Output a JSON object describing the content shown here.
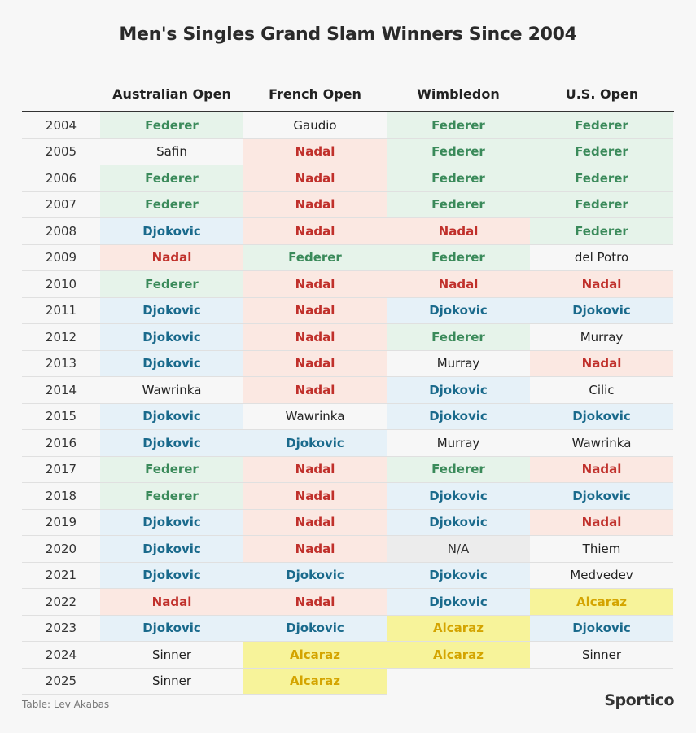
{
  "chart_data": {
    "type": "table",
    "title": "Men's Singles Grand Slam Winners Since 2004",
    "columns": [
      "Australian Open",
      "French Open",
      "Wimbledon",
      "U.S. Open"
    ],
    "rows": [
      {
        "year": "2004",
        "winners": [
          "Federer",
          "Gaudio",
          "Federer",
          "Federer"
        ]
      },
      {
        "year": "2005",
        "winners": [
          "Safin",
          "Nadal",
          "Federer",
          "Federer"
        ]
      },
      {
        "year": "2006",
        "winners": [
          "Federer",
          "Nadal",
          "Federer",
          "Federer"
        ]
      },
      {
        "year": "2007",
        "winners": [
          "Federer",
          "Nadal",
          "Federer",
          "Federer"
        ]
      },
      {
        "year": "2008",
        "winners": [
          "Djokovic",
          "Nadal",
          "Nadal",
          "Federer"
        ]
      },
      {
        "year": "2009",
        "winners": [
          "Nadal",
          "Federer",
          "Federer",
          "del Potro"
        ]
      },
      {
        "year": "2010",
        "winners": [
          "Federer",
          "Nadal",
          "Nadal",
          "Nadal"
        ]
      },
      {
        "year": "2011",
        "winners": [
          "Djokovic",
          "Nadal",
          "Djokovic",
          "Djokovic"
        ]
      },
      {
        "year": "2012",
        "winners": [
          "Djokovic",
          "Nadal",
          "Federer",
          "Murray"
        ]
      },
      {
        "year": "2013",
        "winners": [
          "Djokovic",
          "Nadal",
          "Murray",
          "Nadal"
        ]
      },
      {
        "year": "2014",
        "winners": [
          "Wawrinka",
          "Nadal",
          "Djokovic",
          "Cilic"
        ]
      },
      {
        "year": "2015",
        "winners": [
          "Djokovic",
          "Wawrinka",
          "Djokovic",
          "Djokovic"
        ]
      },
      {
        "year": "2016",
        "winners": [
          "Djokovic",
          "Djokovic",
          "Murray",
          "Wawrinka"
        ]
      },
      {
        "year": "2017",
        "winners": [
          "Federer",
          "Nadal",
          "Federer",
          "Nadal"
        ]
      },
      {
        "year": "2018",
        "winners": [
          "Federer",
          "Nadal",
          "Djokovic",
          "Djokovic"
        ]
      },
      {
        "year": "2019",
        "winners": [
          "Djokovic",
          "Nadal",
          "Djokovic",
          "Nadal"
        ]
      },
      {
        "year": "2020",
        "winners": [
          "Djokovic",
          "Nadal",
          "N/A",
          "Thiem"
        ]
      },
      {
        "year": "2021",
        "winners": [
          "Djokovic",
          "Djokovic",
          "Djokovic",
          "Medvedev"
        ]
      },
      {
        "year": "2022",
        "winners": [
          "Nadal",
          "Nadal",
          "Djokovic",
          "Alcaraz"
        ]
      },
      {
        "year": "2023",
        "winners": [
          "Djokovic",
          "Djokovic",
          "Alcaraz",
          "Djokovic"
        ]
      },
      {
        "year": "2024",
        "winners": [
          "Sinner",
          "Alcaraz",
          "Alcaraz",
          "Sinner"
        ]
      },
      {
        "year": "2025",
        "winners": [
          "Sinner",
          "Alcaraz",
          "",
          ""
        ]
      }
    ]
  },
  "player_styles": {
    "Federer": {
      "bg": "#e6f3ea",
      "color": "#3a8a5a",
      "bold": true
    },
    "Nadal": {
      "bg": "#fbe8e2",
      "color": "#c0302b",
      "bold": true
    },
    "Djokovic": {
      "bg": "#e6f1f8",
      "color": "#1a6a8c",
      "bold": true
    },
    "Alcaraz": {
      "bg": "#f7f39a",
      "color": "#d4a400",
      "bold": true
    },
    "N/A": {
      "bg": "#ececec",
      "color": "#333333",
      "bold": false
    },
    "default": {
      "bg": "#f7f7f7",
      "color": "#222222",
      "bold": false
    }
  },
  "footer": {
    "credit": "Table: Lev Akabas",
    "brand": "Sportico"
  }
}
